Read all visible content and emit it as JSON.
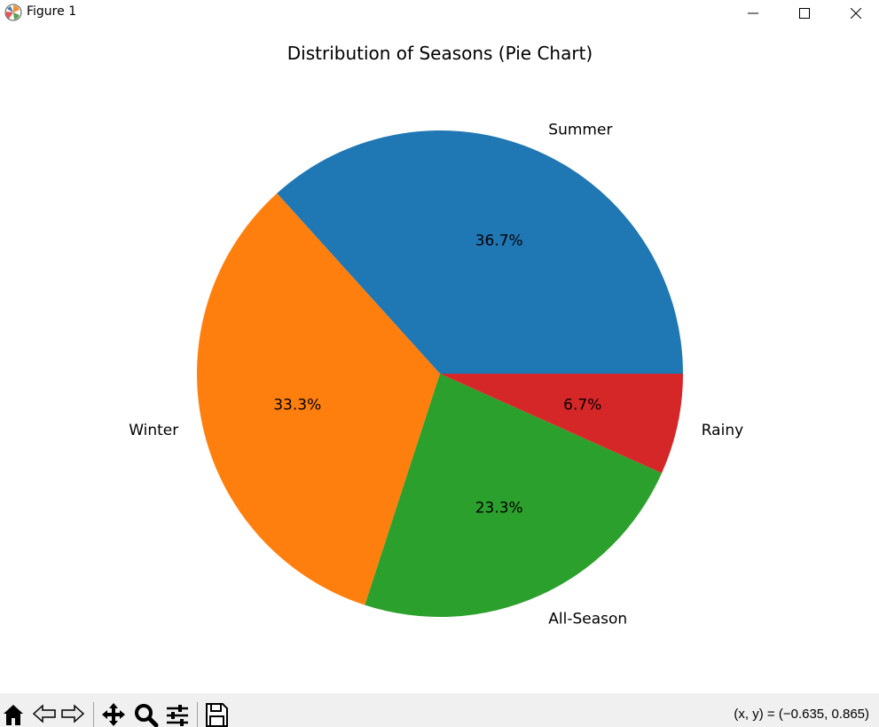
{
  "window": {
    "title": "Figure 1",
    "icons": {
      "app": "matplotlib-icon",
      "minimize": "minimize-icon",
      "maximize": "maximize-icon",
      "close": "close-icon"
    }
  },
  "toolbar": {
    "tools": [
      {
        "name": "home",
        "icon": "home-icon"
      },
      {
        "name": "back",
        "icon": "back-arrow-icon"
      },
      {
        "name": "forward",
        "icon": "forward-arrow-icon"
      },
      {
        "name": "pan",
        "icon": "move-icon"
      },
      {
        "name": "zoom",
        "icon": "zoom-icon"
      },
      {
        "name": "configure-subplots",
        "icon": "sliders-icon"
      },
      {
        "name": "save",
        "icon": "save-icon"
      }
    ],
    "coordinates": "(x, y) = (−0.635, 0.865)"
  },
  "chart_data": {
    "type": "pie",
    "title": "Distribution of Seasons (Pie Chart)",
    "categories": [
      "Summer",
      "Winter",
      "All-Season",
      "Rainy"
    ],
    "values": [
      36.7,
      33.3,
      23.3,
      6.7
    ],
    "labels": [
      "36.7%",
      "33.3%",
      "23.3%",
      "6.7%"
    ],
    "colors": [
      "#1f77b4",
      "#ff7f0e",
      "#2ca02c",
      "#d62728"
    ],
    "start_angle_deg": 0,
    "direction": "counterclockwise",
    "legend": "none"
  }
}
